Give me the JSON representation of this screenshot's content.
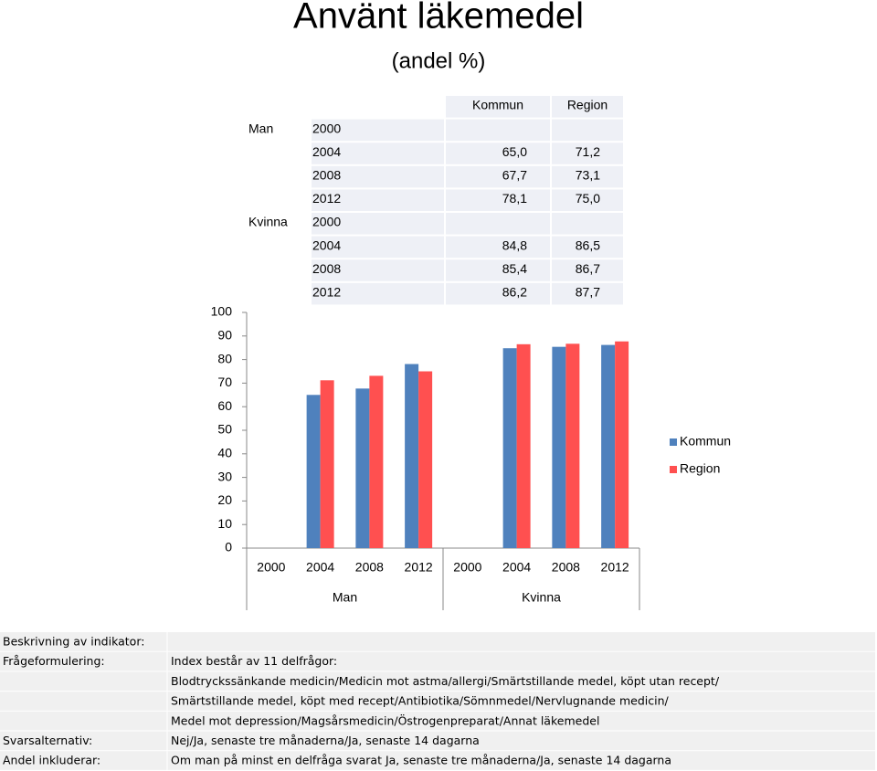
{
  "chart_data": {
    "type": "bar",
    "title": "Använt läkemedel",
    "subtitle": "(andel %)",
    "categories": [
      "2000",
      "2004",
      "2008",
      "2012",
      "2000",
      "2004",
      "2008",
      "2012"
    ],
    "groups": [
      "Man",
      "Kvinna"
    ],
    "series": [
      {
        "name": "Kommun",
        "color": "#4f81bd",
        "values": [
          null,
          65.0,
          67.7,
          78.1,
          null,
          84.8,
          85.4,
          86.2
        ]
      },
      {
        "name": "Region",
        "color": "#ff5050",
        "values": [
          null,
          71.2,
          73.1,
          75.0,
          null,
          86.5,
          86.7,
          87.7
        ]
      }
    ],
    "ylim": [
      0,
      100
    ],
    "yticks": [
      0,
      10,
      20,
      30,
      40,
      50,
      60,
      70,
      80,
      90,
      100
    ],
    "grid": false,
    "legend": "right"
  },
  "table": {
    "header": [
      "Kommun",
      "Region"
    ],
    "rows": [
      [
        "Man",
        "2000",
        null,
        null
      ],
      [
        null,
        "2004",
        "65,0",
        "71,2"
      ],
      [
        null,
        "2008",
        "67,7",
        "73,1"
      ],
      [
        null,
        "2012",
        "78,1",
        "75,0"
      ],
      [
        "Kvinna",
        "2000",
        null,
        null
      ],
      [
        null,
        "2004",
        "84,8",
        "86,5"
      ],
      [
        null,
        "2008",
        "85,4",
        "86,7"
      ],
      [
        null,
        "2012",
        "86,2",
        "87,7"
      ]
    ]
  },
  "description": {
    "rows": [
      [
        "Beskrivning av indikator:",
        null
      ],
      [
        "Frågeformulering:",
        "Index består av 11 delfrågor:"
      ],
      [
        null,
        "Blodtryckssänkande medicin/Medicin mot astma/allergi/Smärtstillande medel, köpt utan recept/"
      ],
      [
        null,
        "Smärtstillande medel, köpt med recept/Antibiotika/Sömnmedel/Nervlugnande medicin/"
      ],
      [
        null,
        "Medel mot depression/Magsårsmedicin/Östrogenpreparat/Annat läkemedel"
      ],
      [
        "Svarsalternativ:",
        "Nej/Ja, senaste tre månaderna/Ja, senaste 14 dagarna"
      ],
      [
        "Andel inkluderar:",
        "Om man på minst en delfråga svarat Ja, senaste tre månaderna/Ja, senaste 14 dagarna"
      ]
    ]
  }
}
